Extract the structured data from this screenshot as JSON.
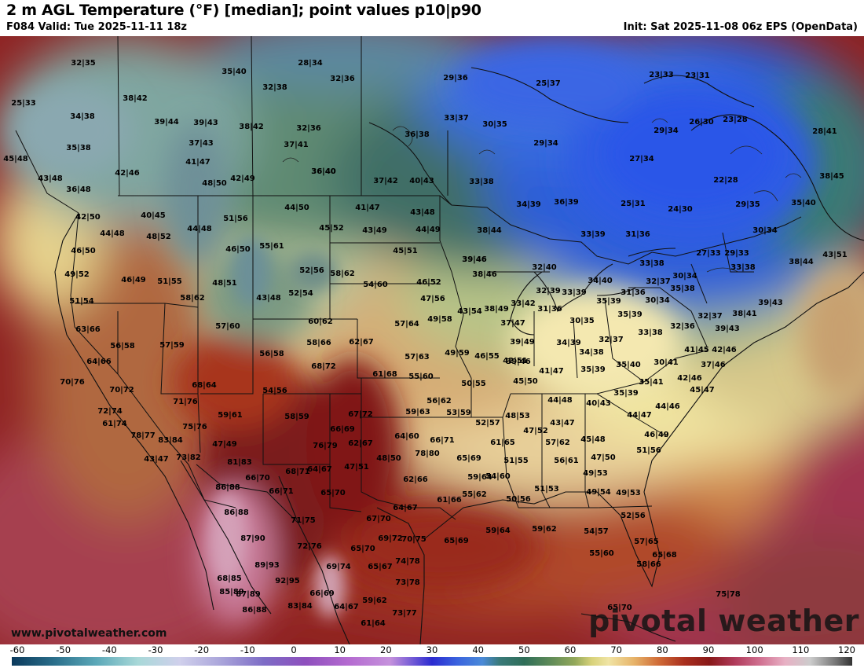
{
  "header": {
    "title": "2 m AGL Temperature (°F) [median]; point values p10|p90",
    "valid": "F084 Valid: Tue 2025-11-11 18z",
    "init": "Init: Sat 2025-11-08 06z EPS (OpenData)"
  },
  "footer": {
    "website": "www.pivotalweather.com",
    "brand": "pivotal weather"
  },
  "colorbar": {
    "unit": "°F",
    "ticks": [
      "-60",
      "-50",
      "-40",
      "-30",
      "-20",
      "-10",
      "0",
      "10",
      "20",
      "30",
      "40",
      "50",
      "60",
      "70",
      "80",
      "90",
      "100",
      "110",
      "120"
    ]
  },
  "points": [
    "32|35",
    "28|34",
    "35|40",
    "32|36",
    "29|36",
    "25|37",
    "23|33",
    "23|31",
    "25|33",
    "38|42",
    "32|38",
    "34|38",
    "39|44",
    "39|43",
    "37|43",
    "38|42",
    "32|36",
    "36|40",
    "33|37",
    "30|35",
    "26|30",
    "23|28",
    "29|34",
    "28|41",
    "35|38",
    "37|41",
    "41|47",
    "36|38",
    "29|34",
    "27|34",
    "45|48",
    "43|48",
    "42|46",
    "48|50",
    "42|49",
    "36|40",
    "37|42",
    "40|43",
    "33|38",
    "22|28",
    "38|45",
    "36|48",
    "41|47",
    "44|50",
    "43|48",
    "34|39",
    "36|39",
    "25|31",
    "24|30",
    "29|35",
    "35|40",
    "42|50",
    "40|45",
    "44|48",
    "45|52",
    "43|49",
    "44|49",
    "38|44",
    "33|39",
    "31|36",
    "30|34",
    "44|48",
    "48|52",
    "51|56",
    "46|50",
    "55|61",
    "45|51",
    "27|33",
    "29|33",
    "43|51",
    "46|50",
    "39|46",
    "32|40",
    "33|38",
    "33|38",
    "39|46",
    "49|52",
    "46|49",
    "51|55",
    "52|56",
    "58|62",
    "46|52",
    "38|46",
    "34|40",
    "32|37",
    "30|34",
    "38|44",
    "51|54",
    "58|62",
    "48|51",
    "43|48",
    "52|54",
    "54|60",
    "47|56",
    "32|39",
    "33|39",
    "31|36",
    "35|39",
    "35|38",
    "39|43",
    "38|41",
    "57|60",
    "60|62",
    "43|54",
    "33|42",
    "31|36",
    "30|35",
    "35|39",
    "63|66",
    "57|64",
    "49|58",
    "38|49",
    "30|34",
    "39|43",
    "56|58",
    "57|59",
    "58|66",
    "62|67",
    "37|47",
    "32|36",
    "32|37",
    "33|38",
    "64|66",
    "56|58",
    "49|59",
    "39|49",
    "34|39",
    "32|37",
    "41|45",
    "42|46",
    "46|55",
    "34|38",
    "39|46",
    "68|72",
    "57|63",
    "42|51",
    "35|39",
    "35|40",
    "30|41",
    "37|46",
    "70|76",
    "61|68",
    "55|60",
    "41|47",
    "42|46",
    "70|72",
    "68|64",
    "50|55",
    "45|50",
    "35|41",
    "45|47",
    "54|56",
    "35|39",
    "40|43",
    "71|76",
    "56|62",
    "44|48",
    "44|46",
    "72|74",
    "59|61",
    "48|53",
    "44|47",
    "67|72",
    "59|63",
    "53|59",
    "52|57",
    "61|74",
    "75|76",
    "58|59",
    "66|69",
    "47|52",
    "43|47",
    "46|49",
    "78|77",
    "83|84",
    "64|60",
    "47|49",
    "76|79",
    "62|67",
    "66|71",
    "57|62",
    "45|48",
    "43|47",
    "73|82",
    "81|83",
    "78|80",
    "61|65",
    "51|56",
    "48|50",
    "65|69",
    "56|61",
    "47|50",
    "47|51",
    "66|70",
    "68|71",
    "64|67",
    "62|66",
    "51|55",
    "59|64",
    "54|60",
    "49|53",
    "86|88",
    "66|71",
    "65|70",
    "61|66",
    "55|62",
    "51|53",
    "49|54",
    "49|53",
    "50|56",
    "86|88",
    "64|67",
    "52|56",
    "71|75",
    "67|70",
    "59|64",
    "59|62",
    "54|57",
    "87|90",
    "72|76",
    "69|72",
    "70|75",
    "65|69",
    "57|65",
    "55|60",
    "89|93",
    "65|70",
    "74|78",
    "58|66",
    "65|68",
    "68|85",
    "92|95",
    "69|74",
    "65|67",
    "73|78",
    "85|89",
    "75|78",
    "87|89",
    "66|69",
    "59|62",
    "86|88",
    "83|84",
    "64|67",
    "73|77",
    "65|70",
    "61|64"
  ]
}
